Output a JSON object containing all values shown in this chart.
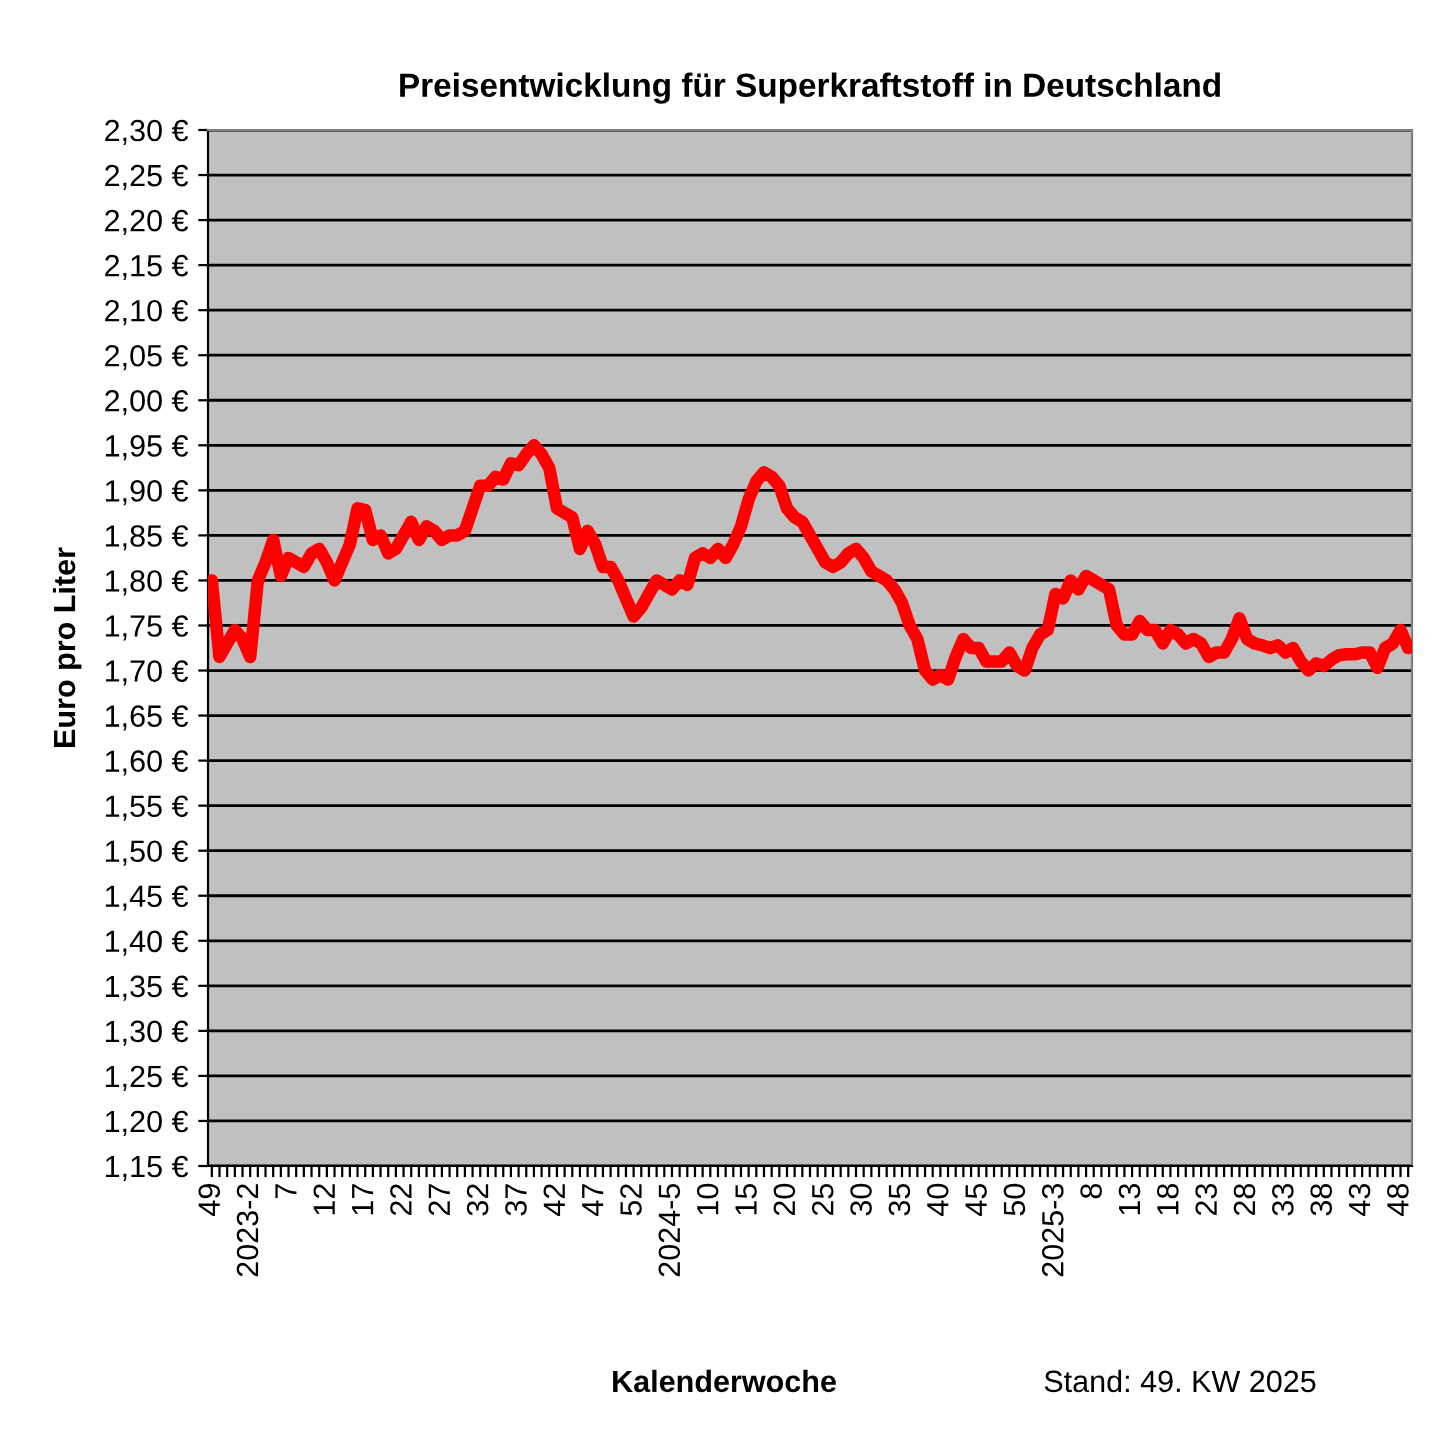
{
  "chart_data": {
    "type": "line",
    "title": "Preisentwicklung für Superkraftstoff in Deutschland",
    "xlabel": "Kalenderwoche",
    "ylabel": "Euro pro Liter",
    "annotations": [
      "Stand: 49. KW 2025"
    ],
    "categories": [
      "49",
      null,
      null,
      null,
      null,
      "2023-2",
      null,
      null,
      null,
      null,
      "7",
      null,
      null,
      null,
      null,
      "12",
      null,
      null,
      null,
      null,
      "17",
      null,
      null,
      null,
      null,
      "22",
      null,
      null,
      null,
      null,
      "27",
      null,
      null,
      null,
      null,
      "32",
      null,
      null,
      null,
      null,
      "37",
      null,
      null,
      null,
      null,
      "42",
      null,
      null,
      null,
      null,
      "47",
      null,
      null,
      null,
      null,
      "52",
      null,
      null,
      null,
      null,
      "2024-5",
      null,
      null,
      null,
      null,
      "10",
      null,
      null,
      null,
      null,
      "15",
      null,
      null,
      null,
      null,
      "20",
      null,
      null,
      null,
      null,
      "25",
      null,
      null,
      null,
      null,
      "30",
      null,
      null,
      null,
      null,
      "35",
      null,
      null,
      null,
      null,
      "40",
      null,
      null,
      null,
      null,
      "45",
      null,
      null,
      null,
      null,
      "50",
      null,
      null,
      null,
      null,
      "2025-3",
      null,
      null,
      null,
      null,
      "8",
      null,
      null,
      null,
      null,
      "13",
      null,
      null,
      null,
      null,
      "18",
      null,
      null,
      null,
      null,
      "23",
      null,
      null,
      null,
      null,
      "28",
      null,
      null,
      null,
      null,
      "33",
      null,
      null,
      null,
      null,
      "38",
      null,
      null,
      null,
      null,
      "43",
      null,
      null,
      null,
      null,
      "48",
      null
    ],
    "series": [
      {
        "color": "#ff0000",
        "values": [
          1.8,
          1.715,
          1.73,
          1.745,
          1.735,
          1.715,
          1.8,
          1.82,
          1.845,
          1.805,
          1.825,
          1.82,
          1.815,
          1.83,
          1.835,
          1.82,
          1.8,
          1.82,
          1.84,
          1.88,
          1.878,
          1.845,
          1.85,
          1.83,
          1.835,
          1.85,
          1.865,
          1.845,
          1.86,
          1.855,
          1.845,
          1.85,
          1.85,
          1.855,
          1.88,
          1.905,
          1.905,
          1.915,
          1.912,
          1.93,
          1.928,
          1.94,
          1.95,
          1.94,
          1.925,
          1.88,
          1.875,
          1.87,
          1.835,
          1.855,
          1.84,
          1.815,
          1.815,
          1.8,
          1.78,
          1.76,
          1.77,
          1.785,
          1.8,
          1.795,
          1.79,
          1.8,
          1.795,
          1.825,
          1.83,
          1.825,
          1.835,
          1.825,
          1.84,
          1.86,
          1.89,
          1.91,
          1.92,
          1.915,
          1.905,
          1.88,
          1.87,
          1.865,
          1.85,
          1.835,
          1.82,
          1.815,
          1.82,
          1.83,
          1.835,
          1.825,
          1.81,
          1.805,
          1.8,
          1.79,
          1.775,
          1.75,
          1.735,
          1.7,
          1.69,
          1.695,
          1.69,
          1.715,
          1.735,
          1.725,
          1.725,
          1.71,
          1.71,
          1.71,
          1.72,
          1.705,
          1.7,
          1.725,
          1.74,
          1.745,
          1.785,
          1.78,
          1.8,
          1.79,
          1.805,
          1.8,
          1.795,
          1.79,
          1.75,
          1.74,
          1.74,
          1.755,
          1.745,
          1.745,
          1.73,
          1.745,
          1.74,
          1.73,
          1.735,
          1.73,
          1.715,
          1.72,
          1.72,
          1.735,
          1.758,
          1.735,
          1.73,
          1.728,
          1.725,
          1.728,
          1.72,
          1.725,
          1.71,
          1.7,
          1.708,
          1.705,
          1.712,
          1.717,
          1.718,
          1.718,
          1.72,
          1.72,
          1.703,
          1.725,
          1.73,
          1.745,
          1.725
        ]
      }
    ],
    "ylim": [
      1.15,
      2.3
    ],
    "yticks": [
      {
        "value": 1.15,
        "label": "1,15 €"
      },
      {
        "value": 1.2,
        "label": "1,20 €"
      },
      {
        "value": 1.25,
        "label": "1,25 €"
      },
      {
        "value": 1.3,
        "label": "1,30 €"
      },
      {
        "value": 1.35,
        "label": "1,35 €"
      },
      {
        "value": 1.4,
        "label": "1,40 €"
      },
      {
        "value": 1.45,
        "label": "1,45 €"
      },
      {
        "value": 1.5,
        "label": "1,50 €"
      },
      {
        "value": 1.55,
        "label": "1,55 €"
      },
      {
        "value": 1.6,
        "label": "1,60 €"
      },
      {
        "value": 1.65,
        "label": "1,65 €"
      },
      {
        "value": 1.7,
        "label": "1,70 €"
      },
      {
        "value": 1.75,
        "label": "1,75 €"
      },
      {
        "value": 1.8,
        "label": "1,80 €"
      },
      {
        "value": 1.85,
        "label": "1,85 €"
      },
      {
        "value": 1.9,
        "label": "1,90 €"
      },
      {
        "value": 1.95,
        "label": "1,95 €"
      },
      {
        "value": 2.0,
        "label": "2,00 €"
      },
      {
        "value": 2.05,
        "label": "2,05 €"
      },
      {
        "value": 2.1,
        "label": "2,10 €"
      },
      {
        "value": 2.15,
        "label": "2,15 €"
      },
      {
        "value": 2.2,
        "label": "2,20 €"
      },
      {
        "value": 2.25,
        "label": "2,25 €"
      },
      {
        "value": 2.3,
        "label": "2,30 €"
      }
    ],
    "grid": "y",
    "marker": "none",
    "line_style": "solid"
  }
}
